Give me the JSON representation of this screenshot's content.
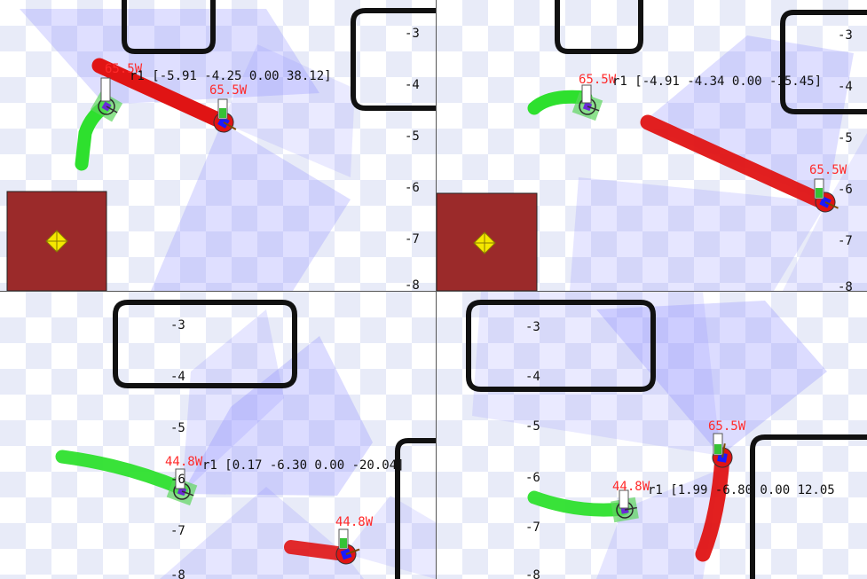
{
  "colors": {
    "trail_red": "#e01414",
    "trail_green": "#2ee02e",
    "laser_fan": "#8c8cff",
    "obstacle_block": "#9b2a2a",
    "goal_marker": "#f5e800",
    "wall_outline": "#111111",
    "power_label": "#ff2a2a"
  },
  "panels": [
    {
      "pose_text": "r1 [-5.91 -4.25 0.00 38.12]",
      "power_labels": [
        "65.5W",
        "65.5W"
      ],
      "y_ticks": [
        "-3",
        "-4",
        "-5",
        "-6",
        "-7",
        "-8"
      ],
      "goal_icon": "goal-diamond-icon"
    },
    {
      "pose_text": "r1 [-4.91 -4.34 0.00 -15.45]",
      "power_labels": [
        "65.5W",
        "65.5W"
      ],
      "y_ticks": [
        "-3",
        "-4",
        "-5",
        "-6",
        "-7",
        "-8"
      ],
      "goal_icon": "goal-diamond-icon"
    },
    {
      "pose_text": "r1 [0.17 -6.30 0.00 -20.04]",
      "power_labels": [
        "44.8W",
        "44.8W"
      ],
      "y_ticks": [
        "-3",
        "-4",
        "-5",
        "-6",
        "-7",
        "-8"
      ]
    },
    {
      "pose_text": "r1 [1.99 -6.80 0.00 12.05",
      "power_labels": [
        "44.8W",
        "65.5W"
      ],
      "y_ticks": [
        "-3",
        "-4",
        "-5",
        "-6",
        "-7",
        "-8"
      ]
    }
  ]
}
